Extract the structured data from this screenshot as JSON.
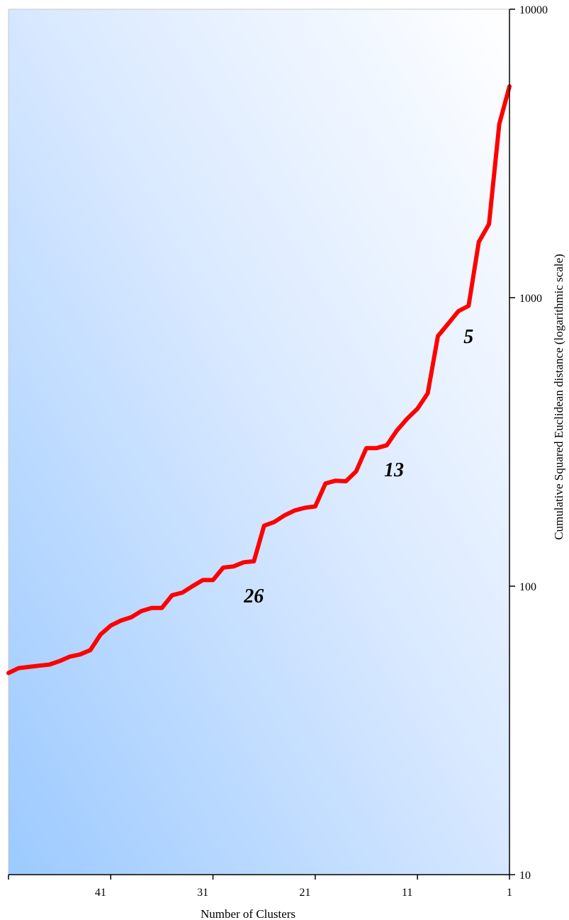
{
  "chart_data": {
    "type": "line",
    "title": "",
    "xlabel": "Number of Clusters",
    "ylabel": "Cumulative Squared Euclidean distance (logarithmic scale)",
    "x_reversed": true,
    "xlim": [
      50,
      1
    ],
    "ylim": [
      10,
      10000
    ],
    "yscale": "log",
    "y_axis_position": "right",
    "x_ticks": [
      "41",
      "31",
      "21",
      "11",
      "1"
    ],
    "x_tick_values": [
      41,
      31,
      21,
      11,
      1
    ],
    "y_ticks": [
      "10",
      "100",
      "1000",
      "10000"
    ],
    "y_tick_values": [
      10,
      100,
      1000,
      10000
    ],
    "grid": false,
    "background": "gradient light blue to white",
    "line_color": "#ff0000",
    "series": [
      {
        "x": [
          50,
          49,
          48,
          47,
          46,
          45,
          44,
          43,
          42,
          41,
          40,
          39,
          38,
          37,
          36,
          35,
          34,
          33,
          32,
          31,
          30,
          29,
          28,
          27,
          26,
          25,
          24,
          23,
          22,
          21,
          20,
          19,
          18,
          17,
          16,
          15,
          14,
          13,
          12,
          11,
          10,
          9,
          8,
          7,
          6,
          5,
          4,
          3,
          2,
          1
        ],
        "values": [
          50,
          52,
          52.5,
          53,
          53.5,
          55,
          57,
          58,
          60,
          68,
          73,
          76,
          78,
          82,
          84,
          84,
          93,
          95,
          100,
          105,
          105,
          116,
          117,
          121,
          122,
          162,
          167,
          176,
          183,
          187,
          189,
          227,
          232,
          231,
          250,
          301,
          301,
          308,
          347,
          381,
          412,
          466,
          736,
          812,
          898,
          937,
          1560,
          1800,
          4000,
          5400
        ]
      }
    ],
    "annotations": [
      {
        "text": "5",
        "x": 5,
        "y": 737
      },
      {
        "text": "13",
        "x": 12.3,
        "y": 254
      },
      {
        "text": "26",
        "x": 26,
        "y": 93
      }
    ]
  },
  "colors": {
    "line": "#ff0000",
    "bg_start": "#9ccaff",
    "bg_end": "#ffffff",
    "axis": "#000000"
  }
}
